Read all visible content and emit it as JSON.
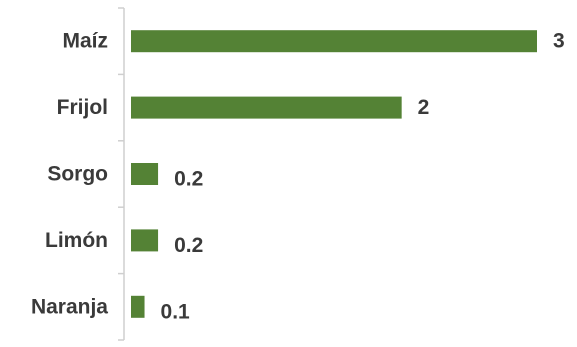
{
  "chart_data": {
    "type": "bar",
    "orientation": "horizontal",
    "categories": [
      "Maíz",
      "Frijol",
      "Sorgo",
      "Limón",
      "Naranja"
    ],
    "values": [
      3,
      2,
      0.2,
      0.2,
      0.1
    ],
    "value_labels": [
      "3",
      "2",
      "0.2",
      "0.2",
      "0.1"
    ],
    "title": "",
    "xlabel": "",
    "ylabel": "",
    "bar_color": "#548235",
    "grid": false,
    "legend": "none"
  }
}
